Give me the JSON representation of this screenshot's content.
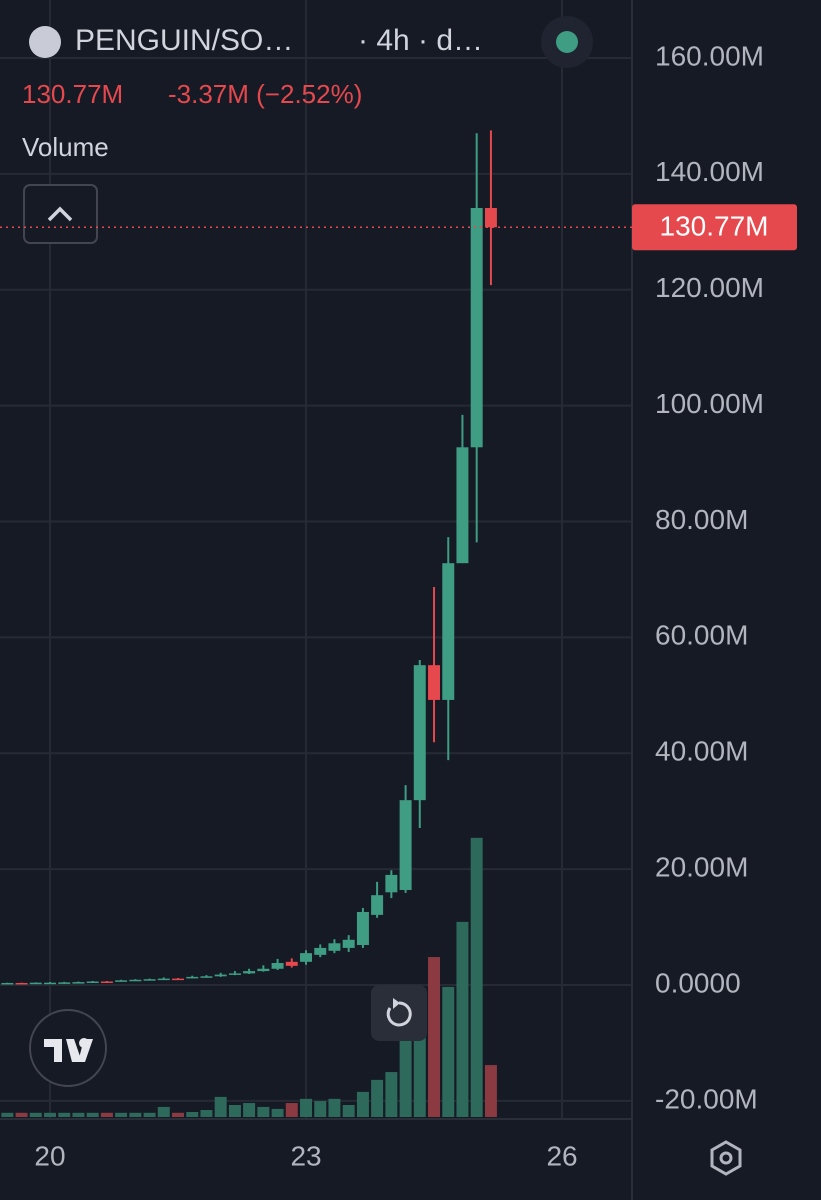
{
  "header": {
    "symbol": "PENGUIN/SO…",
    "interval": "· 4h · d…",
    "change": "-3.37M (−2.52%)",
    "indicator": "Volume"
  },
  "chart_data": {
    "type": "candlestick",
    "x": [
      19.5,
      19.667,
      19.833,
      20,
      20.167,
      20.333,
      20.5,
      20.667,
      20.833,
      21,
      21.167,
      21.333,
      21.5,
      21.667,
      21.833,
      22,
      22.167,
      22.333,
      22.5,
      22.667,
      22.833,
      23,
      23.167,
      23.333,
      23.5,
      23.667,
      23.833,
      24,
      24.167,
      24.333,
      24.5,
      24.667,
      24.833,
      25,
      25.167
    ],
    "open": [
      0.3,
      0.35,
      0.3,
      0.4,
      0.4,
      0.45,
      0.5,
      0.6,
      0.7,
      0.8,
      0.9,
      1.0,
      1.1,
      1.2,
      1.4,
      1.5,
      1.8,
      2.0,
      2.4,
      2.8,
      4.0,
      4.0,
      5.2,
      5.9,
      6.4,
      6.9,
      12.1,
      16.0,
      16.4,
      31.9,
      55.2,
      49.2,
      72.8,
      92.8,
      134.1
    ],
    "high": [
      0.4,
      0.4,
      0.45,
      0.5,
      0.55,
      0.6,
      0.7,
      0.7,
      0.9,
      1.0,
      1.1,
      1.3,
      1.2,
      1.6,
      1.7,
      2.1,
      2.4,
      2.8,
      3.4,
      4.5,
      4.6,
      6.0,
      7.0,
      7.9,
      8.6,
      13.3,
      17.8,
      19.8,
      34.5,
      56.1,
      68.7,
      77.3,
      98.4,
      147,
      147.5
    ],
    "low": [
      0.25,
      0.25,
      0.25,
      0.35,
      0.35,
      0.4,
      0.45,
      0.5,
      0.65,
      0.75,
      0.85,
      0.95,
      0.9,
      1.15,
      1.3,
      1.4,
      1.7,
      1.9,
      2.3,
      2.6,
      3.0,
      3.5,
      4.8,
      5.5,
      5.7,
      6.4,
      11.6,
      15.0,
      15.9,
      27.1,
      41.9,
      38.8,
      72.8,
      76.4,
      120.8
    ],
    "close": [
      0.35,
      0.3,
      0.4,
      0.4,
      0.45,
      0.5,
      0.6,
      0.55,
      0.8,
      0.9,
      1.0,
      1.1,
      1.0,
      1.4,
      1.5,
      1.8,
      2.0,
      2.4,
      2.8,
      3.8,
      3.3,
      5.5,
      6.4,
      7.2,
      7.8,
      12.6,
      15.5,
      19.0,
      31.9,
      55.2,
      49.2,
      72.8,
      92.8,
      134.1,
      130.77
    ],
    "volume": [
      1.5,
      1.5,
      1.5,
      1.5,
      1.5,
      1.5,
      1.5,
      1.5,
      1.5,
      1.5,
      1.5,
      3.6,
      1.5,
      1.8,
      2.5,
      7.2,
      4.3,
      5,
      3.6,
      2.9,
      5,
      6.5,
      5.7,
      6.5,
      4.3,
      9,
      13.3,
      16.1,
      28.7,
      28.7,
      57.3,
      46.6,
      69.9,
      100,
      18.6
    ],
    "vlim": [
      0,
      120
    ],
    "up_color": "#3f9d84",
    "down_color": "#e5484d",
    "volume_up_color": "#2d6a5c",
    "volume_down_color": "#8b3a42",
    "last_price": {
      "value": 130.77,
      "label": "130.77M"
    },
    "xlim": [
      19.414,
      26.82
    ],
    "xticks": [
      20,
      23,
      26
    ],
    "ylim": [
      -23.3,
      170
    ],
    "yticks": [
      {
        "value": 160,
        "label": "160.00M"
      },
      {
        "value": 140,
        "label": "140.00M"
      },
      {
        "value": 120,
        "label": "120.00M"
      },
      {
        "value": 100,
        "label": "100.00M"
      },
      {
        "value": 80,
        "label": "80.00M"
      },
      {
        "value": 60,
        "label": "60.00M"
      },
      {
        "value": 40,
        "label": "40.00M"
      },
      {
        "value": 20,
        "label": "20.00M"
      },
      {
        "value": 0,
        "label": "0.0000"
      },
      {
        "value": -20,
        "label": "-20.00M"
      }
    ],
    "grid": true
  }
}
